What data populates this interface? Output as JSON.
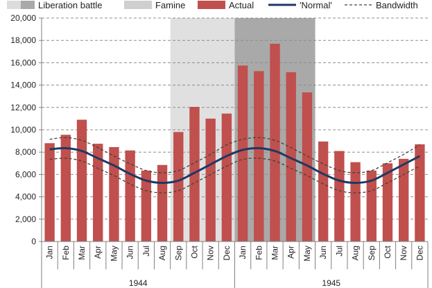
{
  "chart_data": {
    "type": "bar",
    "title": "",
    "xlabel": "",
    "ylabel": "",
    "ylim": [
      0,
      20000
    ],
    "yticks": [
      0,
      2000,
      4000,
      6000,
      8000,
      10000,
      12000,
      14000,
      16000,
      18000,
      20000
    ],
    "ytick_labels": [
      "0",
      "2,000",
      "4,000",
      "6,000",
      "8,000",
      "10,000",
      "12,000",
      "14,000",
      "16,000",
      "18,000",
      "20,000"
    ],
    "grid": "horizontal dashed",
    "legend_position": "top",
    "categories": [
      "Jan",
      "Feb",
      "Mar",
      "Apr",
      "May",
      "Jun",
      "Jul",
      "Aug",
      "Sep",
      "Oct",
      "Nov",
      "Dec",
      "Jan",
      "Feb",
      "Mar",
      "Apr",
      "May",
      "Jun",
      "Jul",
      "Aug",
      "Sep",
      "Oct",
      "Nov",
      "Dec"
    ],
    "groups": [
      {
        "label": "1944",
        "start": 0,
        "end": 11
      },
      {
        "label": "1945",
        "start": 12,
        "end": 23
      }
    ],
    "periods": [
      {
        "name": "Famine",
        "start": 8,
        "end": 16,
        "color": "#e0e0e0"
      },
      {
        "name": "Liberation battle",
        "start": 12,
        "end": 16,
        "color": "#a9a9a9"
      }
    ],
    "series": [
      {
        "name": "Actual",
        "type": "bar",
        "color": "#c0504d",
        "values": [
          8800,
          9550,
          10900,
          8750,
          8450,
          8150,
          6350,
          6850,
          9800,
          12050,
          11000,
          11450,
          15750,
          15250,
          17700,
          15150,
          13350,
          8950,
          8100,
          7100,
          6350,
          7000,
          7400,
          8700
        ]
      },
      {
        "name": "'Normal'",
        "type": "line",
        "color": "#1f3864",
        "values": [
          8250,
          8350,
          8100,
          7450,
          6800,
          6050,
          5450,
          5250,
          5450,
          6150,
          6900,
          7650,
          8200,
          8350,
          8100,
          7450,
          6800,
          6050,
          5450,
          5250,
          5450,
          6150,
          6900,
          7650
        ]
      },
      {
        "name": "Bandwidth",
        "type": "dashed-band",
        "color": "#404040",
        "upper": [
          9150,
          9300,
          9050,
          8400,
          7650,
          6950,
          6350,
          6150,
          6350,
          7050,
          7800,
          8650,
          9150,
          9300,
          9050,
          8400,
          7650,
          6950,
          6350,
          6150,
          6350,
          7050,
          7800,
          8650
        ],
        "lower": [
          7350,
          7450,
          7200,
          6550,
          5900,
          5150,
          4550,
          4350,
          4550,
          5250,
          6000,
          6750,
          7350,
          7450,
          7200,
          6550,
          5900,
          5150,
          4550,
          4350,
          4550,
          5250,
          6000,
          6750
        ]
      }
    ],
    "legend": [
      {
        "label": "Liberation battle",
        "kind": "swatch",
        "color": "#a9a9a9"
      },
      {
        "label": "Famine",
        "kind": "swatch",
        "color": "#cfcfcf"
      },
      {
        "label": "Actual",
        "kind": "swatch",
        "color": "#c0504d"
      },
      {
        "label": "'Normal'",
        "kind": "line",
        "color": "#1f3864"
      },
      {
        "label": "Bandwidth",
        "kind": "dashed",
        "color": "#404040"
      }
    ]
  }
}
